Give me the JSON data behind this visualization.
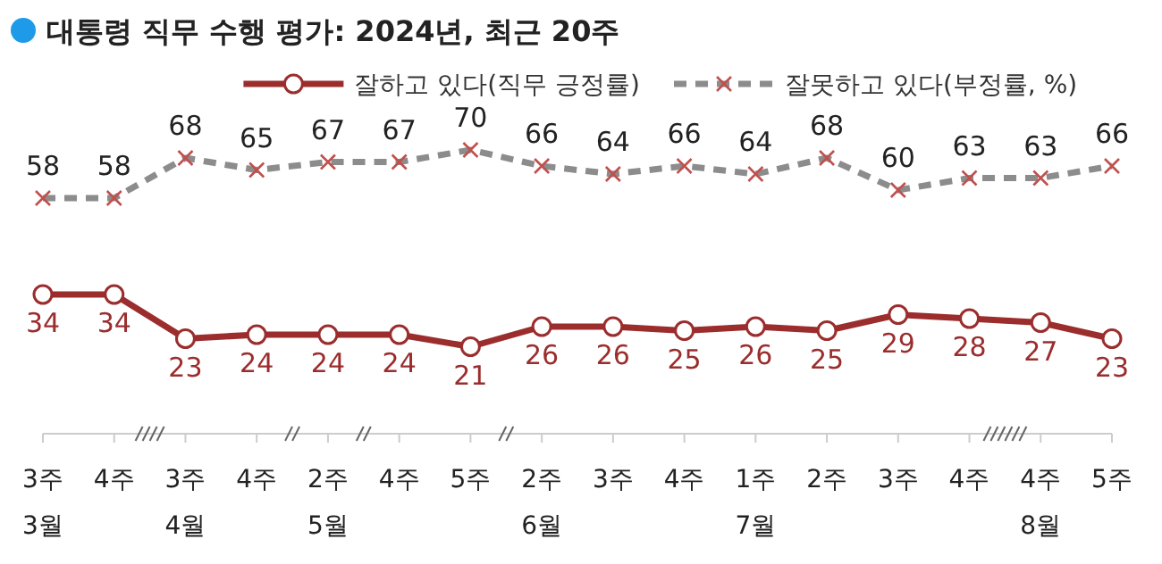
{
  "chart_data": {
    "type": "line",
    "title": "대통령 직무 수행 평가: 2024년, 최근 20주",
    "categories": [
      "3주\n3월",
      "4주",
      "3주\n4월",
      "4주",
      "2주\n5월",
      "4주",
      "5주",
      "2주\n6월",
      "3주",
      "4주",
      "1주\n7월",
      "2주",
      "3주",
      "4주",
      "4주\n8월",
      "5주"
    ],
    "series": [
      {
        "name": "잘하고 있다(직무 긍정률)",
        "color": "#9b2d2d",
        "marker": "circle",
        "line_style": "solid",
        "values": [
          34,
          34,
          23,
          24,
          24,
          24,
          21,
          26,
          26,
          25,
          26,
          25,
          29,
          28,
          27,
          23
        ]
      },
      {
        "name": "잘못하고 있다(부정률, %)",
        "color": "#8c8c8c",
        "marker": "cross",
        "line_style": "dashed",
        "values": [
          58,
          58,
          68,
          65,
          67,
          67,
          70,
          66,
          64,
          66,
          64,
          68,
          60,
          63,
          63,
          66
        ]
      }
    ],
    "data_labels": true,
    "legend": "top right"
  }
}
